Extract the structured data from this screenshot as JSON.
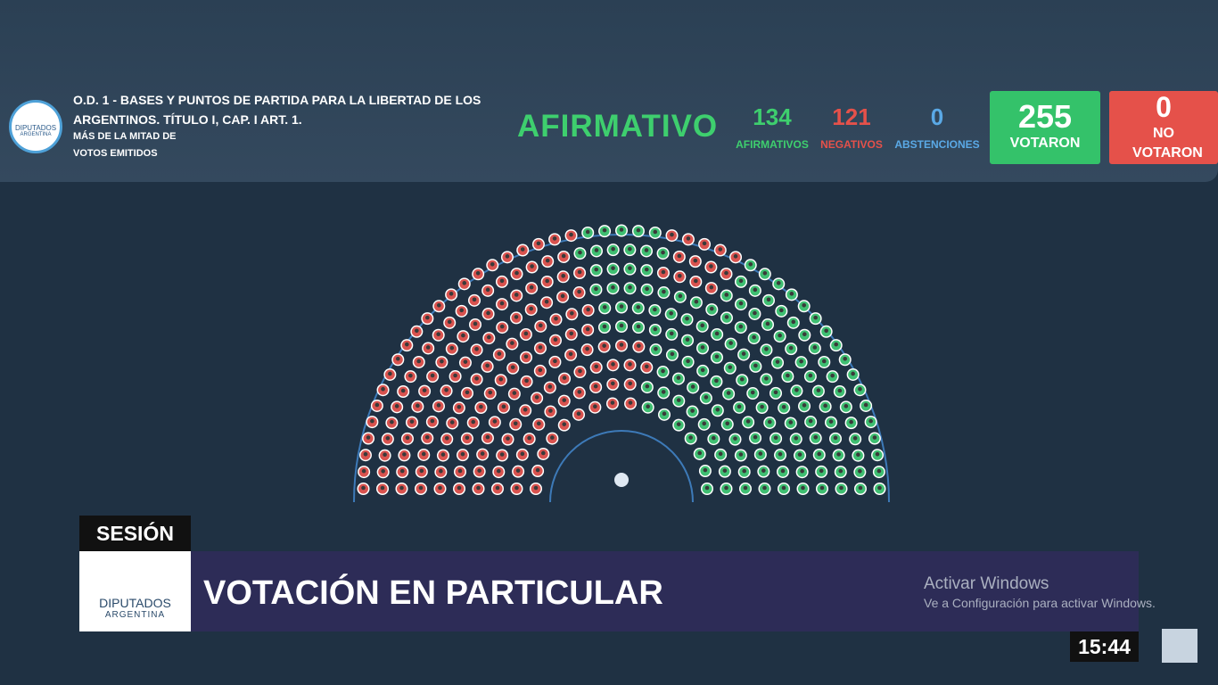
{
  "header": {
    "title_line1": "O.D. 1 - BASES Y PUNTOS DE PARTIDA PARA LA LIBERTAD DE LOS",
    "title_line2": "ARGENTINOS. TÍTULO I, CAP. I ART. 1.",
    "subtitle_line1": "MÁS DE LA MITAD DE",
    "subtitle_line2": "VOTOS EMITIDOS",
    "logo_name": "DIPUTADOS",
    "logo_country": "ARGENTINA",
    "result": "AFIRMATIVO",
    "counts": [
      {
        "value": 134,
        "label": "AFIRMATIVOS"
      },
      {
        "value": 121,
        "label": "NEGATIVOS"
      },
      {
        "value": 0,
        "label": "ABSTENCIONES"
      }
    ],
    "voted": {
      "value": 255,
      "label": "VOTARON"
    },
    "not_voted": {
      "value": 0,
      "label": "NO VOTARON"
    }
  },
  "lower_third": {
    "section": "SESIÓN",
    "title": "VOTACIÓN EN PARTICULAR",
    "logo_name": "DIPUTADOS",
    "logo_country": "ARGENTINA"
  },
  "watermark": {
    "title": "Activar Windows",
    "text": "Ve a Configuración para activar Windows."
  },
  "clock": "15:44"
}
